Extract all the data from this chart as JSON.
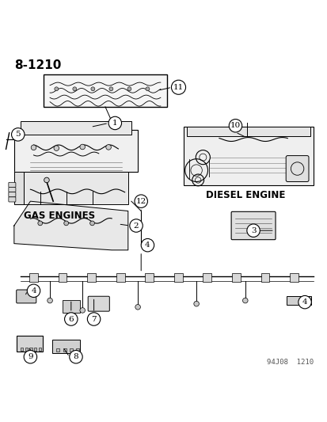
{
  "page_number": "8-1210",
  "background_color": "#ffffff",
  "line_color": "#000000",
  "text_color": "#000000",
  "labels": {
    "gas_engines": "GAS ENGINES",
    "diesel_engine": "DIESEL ENGINE",
    "part_number_stamp": "94J08  1210"
  },
  "callout_numbers": [
    1,
    2,
    3,
    4,
    5,
    6,
    7,
    8,
    9,
    10,
    11,
    12
  ],
  "figsize": [
    4.14,
    5.33
  ],
  "dpi": 100
}
